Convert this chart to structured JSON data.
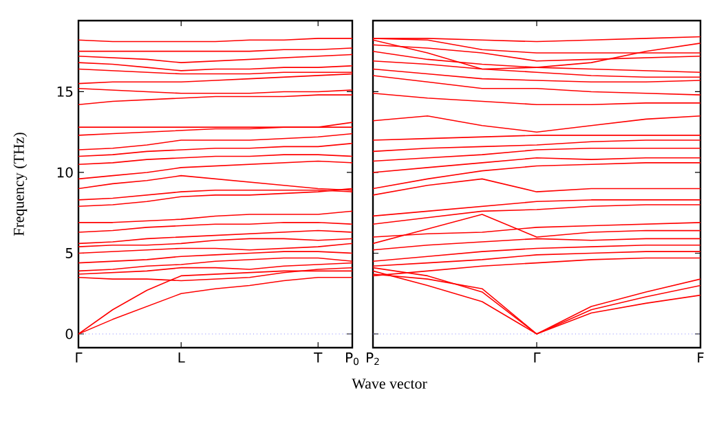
{
  "chart_data": [
    {
      "type": "line",
      "ylabel": "Frequency (THz)",
      "xlabel": "Wave vector",
      "categories": [
        "Γ",
        null,
        null,
        "L",
        null,
        null,
        null,
        "T",
        "P$_{0}$"
      ],
      "ylim": [
        -0.85,
        19.4
      ],
      "yticks": [
        0,
        5,
        10,
        15
      ],
      "marker": "none",
      "line_style": "solid",
      "ref_lines": [
        {
          "axis": "y",
          "value": 0,
          "color": "#8080ff",
          "line_style": "dotted"
        }
      ],
      "series": [
        {
          "color": "#ff0000",
          "values": [
            0,
            0.9,
            1.7,
            2.5,
            2.8,
            3.0,
            3.3,
            3.5,
            3.5
          ]
        },
        {
          "color": "#ff0000",
          "values": [
            0,
            1.5,
            2.7,
            3.6,
            3.7,
            3.8,
            3.9,
            3.9,
            3.9
          ]
        },
        {
          "color": "#ff0000",
          "values": [
            3.5,
            3.4,
            3.4,
            3.3,
            3.4,
            3.5,
            3.8,
            4.0,
            4.1
          ]
        },
        {
          "color": "#ff0000",
          "values": [
            3.7,
            3.8,
            3.9,
            4.1,
            4.1,
            4.0,
            4.2,
            4.3,
            4.4
          ]
        },
        {
          "color": "#ff0000",
          "values": [
            3.9,
            4.0,
            4.2,
            4.3,
            4.5,
            4.6,
            4.7,
            4.7,
            4.5
          ]
        },
        {
          "color": "#ff0000",
          "values": [
            4.4,
            4.5,
            4.6,
            4.8,
            4.9,
            5.0,
            5.1,
            5.1,
            5.0
          ]
        },
        {
          "color": "#ff0000",
          "values": [
            5.0,
            5.1,
            5.2,
            5.3,
            5.3,
            5.2,
            5.3,
            5.4,
            5.6
          ]
        },
        {
          "color": "#ff0000",
          "values": [
            5.4,
            5.5,
            5.5,
            5.6,
            5.8,
            5.9,
            5.9,
            5.8,
            5.9
          ]
        },
        {
          "color": "#ff0000",
          "values": [
            5.6,
            5.7,
            5.9,
            6.0,
            6.1,
            6.2,
            6.3,
            6.4,
            6.3
          ]
        },
        {
          "color": "#ff0000",
          "values": [
            6.3,
            6.4,
            6.6,
            6.7,
            6.8,
            6.8,
            6.9,
            6.9,
            6.8
          ]
        },
        {
          "color": "#ff0000",
          "values": [
            6.9,
            6.9,
            7.0,
            7.1,
            7.3,
            7.4,
            7.4,
            7.4,
            7.6
          ]
        },
        {
          "color": "#ff0000",
          "values": [
            7.9,
            8.0,
            8.2,
            8.5,
            8.6,
            8.6,
            8.7,
            8.8,
            9.0
          ]
        },
        {
          "color": "#ff0000",
          "values": [
            8.3,
            8.4,
            8.6,
            8.8,
            8.9,
            8.9,
            8.9,
            8.9,
            8.8
          ]
        },
        {
          "color": "#ff0000",
          "values": [
            9.0,
            9.3,
            9.5,
            9.8,
            9.6,
            9.4,
            9.2,
            9.0,
            8.9
          ]
        },
        {
          "color": "#ff0000",
          "values": [
            9.6,
            9.8,
            10.0,
            10.3,
            10.4,
            10.5,
            10.6,
            10.7,
            10.6
          ]
        },
        {
          "color": "#ff0000",
          "values": [
            10.5,
            10.6,
            10.8,
            10.9,
            11.0,
            11.0,
            11.1,
            11.1,
            11.0
          ]
        },
        {
          "color": "#ff0000",
          "values": [
            11.0,
            11.1,
            11.3,
            11.4,
            11.5,
            11.5,
            11.6,
            11.6,
            11.8
          ]
        },
        {
          "color": "#ff0000",
          "values": [
            11.4,
            11.5,
            11.7,
            12.0,
            12.0,
            12.0,
            12.1,
            12.2,
            12.4
          ]
        },
        {
          "color": "#ff0000",
          "values": [
            12.3,
            12.4,
            12.5,
            12.6,
            12.7,
            12.7,
            12.8,
            12.8,
            13.1
          ]
        },
        {
          "color": "#ff0000",
          "values": [
            12.8,
            12.8,
            12.8,
            12.8,
            12.8,
            12.8,
            12.8,
            12.8,
            12.8
          ]
        },
        {
          "color": "#ff0000",
          "values": [
            14.2,
            14.4,
            14.5,
            14.6,
            14.7,
            14.7,
            14.7,
            14.8,
            14.8
          ]
        },
        {
          "color": "#ff0000",
          "values": [
            15.2,
            15.1,
            15.0,
            14.9,
            14.9,
            14.9,
            15.0,
            15.0,
            15.1
          ]
        },
        {
          "color": "#ff0000",
          "values": [
            15.5,
            15.6,
            15.6,
            15.6,
            15.7,
            15.8,
            15.9,
            16.0,
            16.1
          ]
        },
        {
          "color": "#ff0000",
          "values": [
            16.4,
            16.3,
            16.2,
            16.1,
            16.1,
            16.1,
            16.2,
            16.2,
            16.2
          ]
        },
        {
          "color": "#ff0000",
          "values": [
            16.8,
            16.7,
            16.5,
            16.3,
            16.4,
            16.4,
            16.5,
            16.5,
            16.6
          ]
        },
        {
          "color": "#ff0000",
          "values": [
            17.2,
            17.1,
            17.0,
            16.8,
            16.9,
            17.0,
            17.1,
            17.2,
            17.3
          ]
        },
        {
          "color": "#ff0000",
          "values": [
            17.5,
            17.5,
            17.5,
            17.5,
            17.5,
            17.5,
            17.6,
            17.6,
            17.7
          ]
        },
        {
          "color": "#ff0000",
          "values": [
            18.2,
            18.1,
            18.1,
            18.1,
            18.1,
            18.2,
            18.2,
            18.3,
            18.3
          ]
        }
      ]
    },
    {
      "type": "line",
      "categories": [
        "P$_{2}$",
        null,
        null,
        "Γ",
        null,
        null,
        "F"
      ],
      "ylim": [
        -0.85,
        19.4
      ],
      "yticks": [
        0,
        5,
        10,
        15
      ],
      "tick_labels": "x",
      "marker": "none",
      "line_style": "solid",
      "ref_lines": [
        {
          "axis": "y",
          "value": 0,
          "color": "#8080ff",
          "line_style": "dotted"
        }
      ],
      "series": [
        {
          "color": "#ff0000",
          "values": [
            3.9,
            3.0,
            2.0,
            0,
            1.3,
            1.9,
            2.4
          ]
        },
        {
          "color": "#ff0000",
          "values": [
            3.7,
            3.4,
            2.8,
            0,
            1.5,
            2.3,
            3.0
          ]
        },
        {
          "color": "#ff0000",
          "values": [
            4.1,
            3.6,
            2.6,
            0,
            1.7,
            2.6,
            3.4
          ]
        },
        {
          "color": "#ff0000",
          "values": [
            3.6,
            3.9,
            4.2,
            4.4,
            4.6,
            4.7,
            4.7
          ]
        },
        {
          "color": "#ff0000",
          "values": [
            4.2,
            4.4,
            4.6,
            4.9,
            5.0,
            5.1,
            5.1
          ]
        },
        {
          "color": "#ff0000",
          "values": [
            4.5,
            4.8,
            5.1,
            5.3,
            5.4,
            5.5,
            5.5
          ]
        },
        {
          "color": "#ff0000",
          "values": [
            5.2,
            5.5,
            5.7,
            5.9,
            5.8,
            5.9,
            5.9
          ]
        },
        {
          "color": "#ff0000",
          "values": [
            5.6,
            6.5,
            7.4,
            6.0,
            6.3,
            6.4,
            6.4
          ]
        },
        {
          "color": "#ff0000",
          "values": [
            6.0,
            6.2,
            6.3,
            6.6,
            6.7,
            6.8,
            6.9
          ]
        },
        {
          "color": "#ff0000",
          "values": [
            6.8,
            7.2,
            7.6,
            7.7,
            7.9,
            8.0,
            8.0
          ]
        },
        {
          "color": "#ff0000",
          "values": [
            7.3,
            7.6,
            7.9,
            8.2,
            8.3,
            8.3,
            8.3
          ]
        },
        {
          "color": "#ff0000",
          "values": [
            8.6,
            9.2,
            9.6,
            8.8,
            9.0,
            9.0,
            9.0
          ]
        },
        {
          "color": "#ff0000",
          "values": [
            9.0,
            9.6,
            10.1,
            10.4,
            10.5,
            10.6,
            10.6
          ]
        },
        {
          "color": "#ff0000",
          "values": [
            10.0,
            10.3,
            10.6,
            10.9,
            10.8,
            10.9,
            10.9
          ]
        },
        {
          "color": "#ff0000",
          "values": [
            10.7,
            10.9,
            11.1,
            11.4,
            11.5,
            11.5,
            11.5
          ]
        },
        {
          "color": "#ff0000",
          "values": [
            11.3,
            11.5,
            11.6,
            11.7,
            11.9,
            12.0,
            12.0
          ]
        },
        {
          "color": "#ff0000",
          "values": [
            12.0,
            12.1,
            12.2,
            12.3,
            12.3,
            12.3,
            12.3
          ]
        },
        {
          "color": "#ff0000",
          "values": [
            13.2,
            13.5,
            12.9,
            12.5,
            12.9,
            13.3,
            13.5
          ]
        },
        {
          "color": "#ff0000",
          "values": [
            14.9,
            14.6,
            14.4,
            14.2,
            14.2,
            14.3,
            14.3
          ]
        },
        {
          "color": "#ff0000",
          "values": [
            16.0,
            15.6,
            15.2,
            15.2,
            15.0,
            14.9,
            14.8
          ]
        },
        {
          "color": "#ff0000",
          "values": [
            16.4,
            16.1,
            15.8,
            15.7,
            15.6,
            15.6,
            15.7
          ]
        },
        {
          "color": "#ff0000",
          "values": [
            16.9,
            16.7,
            16.4,
            16.2,
            16.0,
            15.9,
            15.9
          ]
        },
        {
          "color": "#ff0000",
          "values": [
            17.5,
            17.0,
            16.7,
            16.5,
            16.4,
            16.3,
            16.2
          ]
        },
        {
          "color": "#ff0000",
          "values": [
            17.9,
            17.7,
            17.4,
            16.9,
            17.0,
            17.1,
            17.2
          ]
        },
        {
          "color": "#ff0000",
          "values": [
            18.3,
            18.2,
            17.6,
            17.4,
            17.4,
            17.4,
            17.4
          ]
        },
        {
          "color": "#ff0000",
          "values": [
            18.2,
            17.4,
            16.4,
            16.5,
            16.8,
            17.5,
            18.0
          ]
        },
        {
          "color": "#ff0000",
          "values": [
            18.3,
            18.3,
            18.2,
            18.1,
            18.2,
            18.3,
            18.4
          ]
        }
      ]
    }
  ]
}
